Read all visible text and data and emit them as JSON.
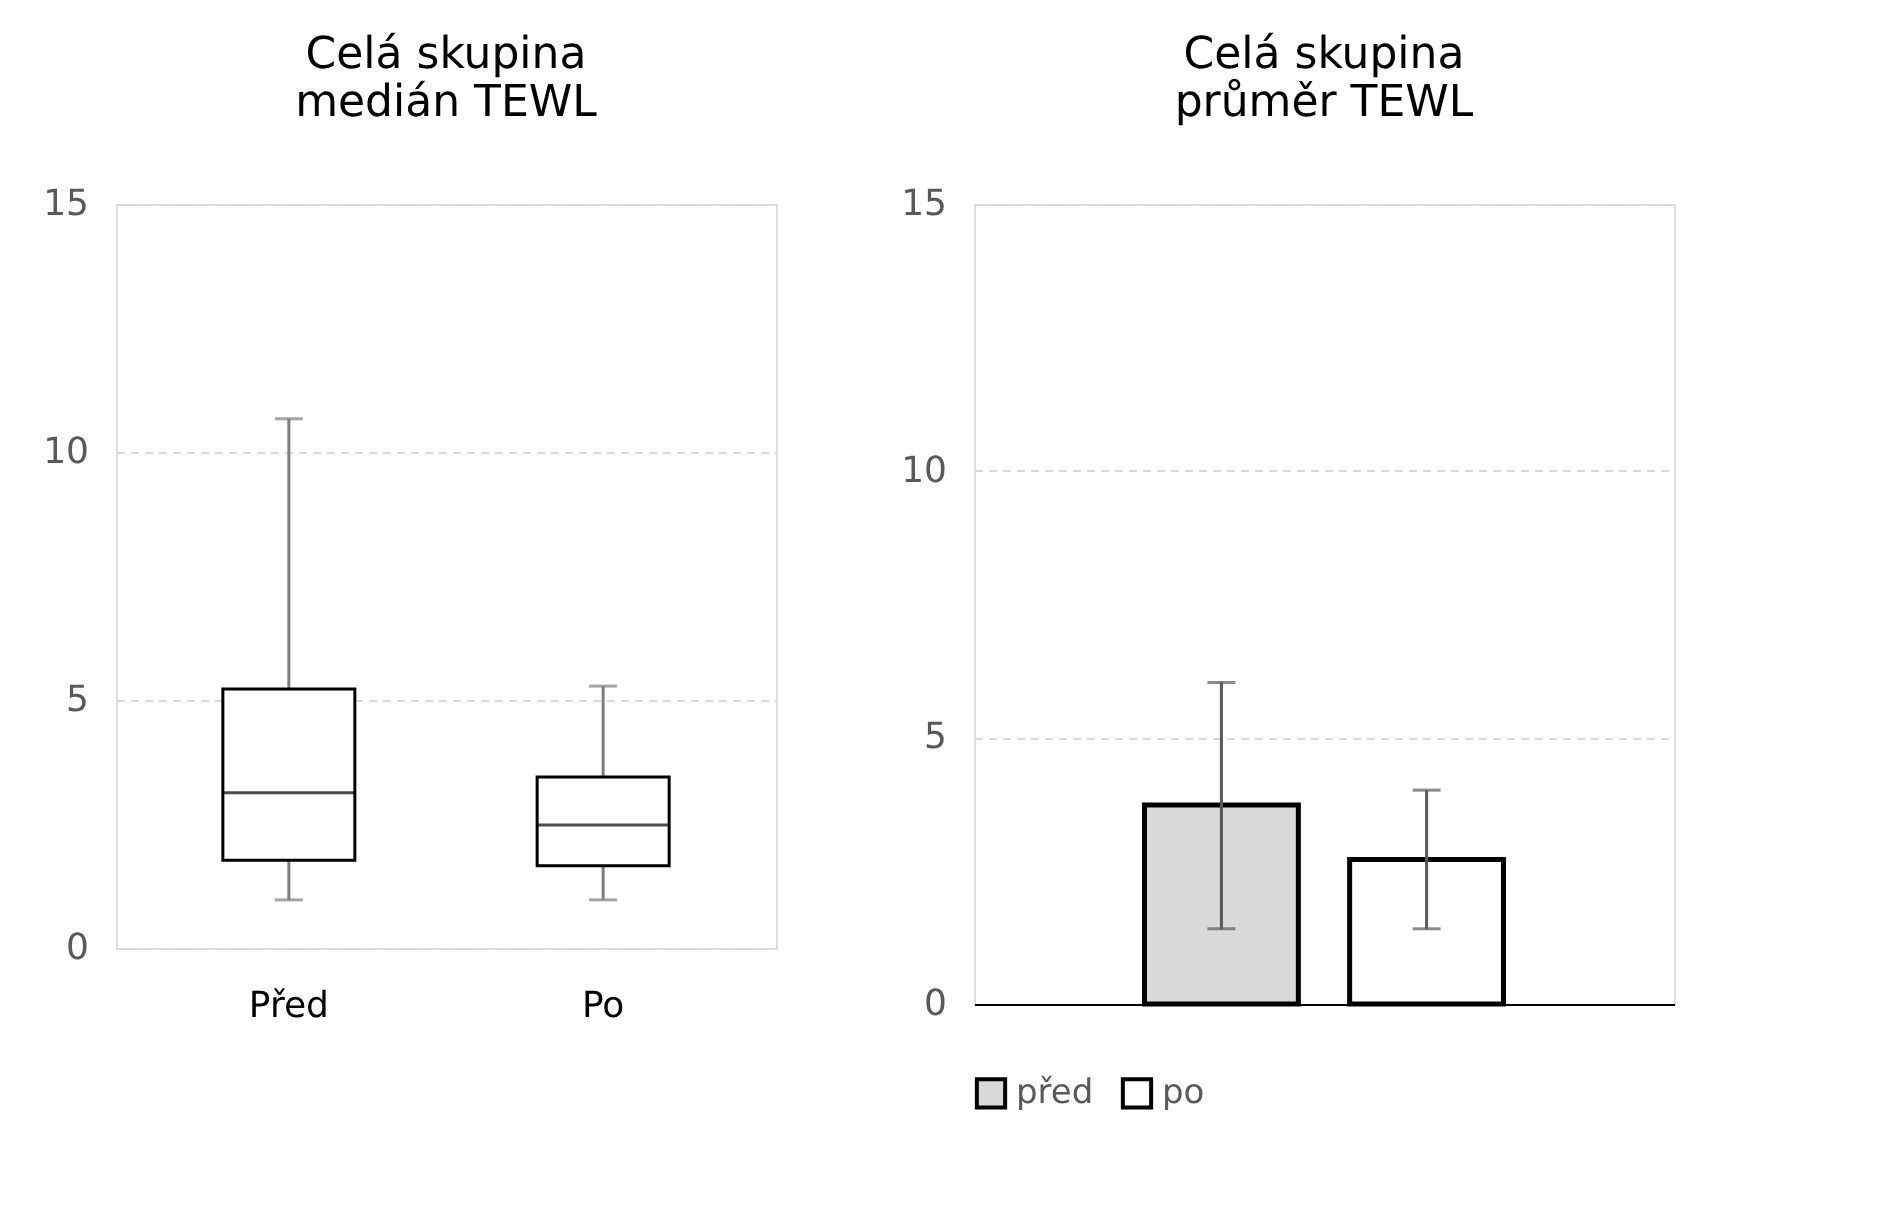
{
  "chart_data": [
    {
      "type": "box",
      "title": "Celá skupina\nmedián TEWL",
      "categories": [
        "Před",
        "Po"
      ],
      "boxes": [
        {
          "low": 0.97,
          "q1": 1.77,
          "median": 3.13,
          "q3": 5.22,
          "high": 10.67
        },
        {
          "low": 0.97,
          "q1": 1.66,
          "median": 2.48,
          "q3": 3.45,
          "high": 5.28
        }
      ],
      "ylim": [
        0,
        15
      ],
      "yticks": [
        0,
        5,
        10,
        15
      ],
      "grid": "y"
    },
    {
      "type": "bar",
      "title": "Celá skupina\nprůměr TEWL",
      "categories": [
        null
      ],
      "series": [
        {
          "name": "před",
          "color": "#d9d9d9",
          "values": [
            3.73
          ],
          "errors": [
            [
              1.41,
              6.03
            ]
          ]
        },
        {
          "name": "po",
          "color": "#ffffff",
          "values": [
            2.71
          ],
          "errors": [
            [
              1.41,
              4.01
            ]
          ]
        }
      ],
      "ylim": [
        0,
        15
      ],
      "yticks": [
        0,
        5,
        10,
        15
      ],
      "grid": "y",
      "legend": "bottom"
    }
  ]
}
